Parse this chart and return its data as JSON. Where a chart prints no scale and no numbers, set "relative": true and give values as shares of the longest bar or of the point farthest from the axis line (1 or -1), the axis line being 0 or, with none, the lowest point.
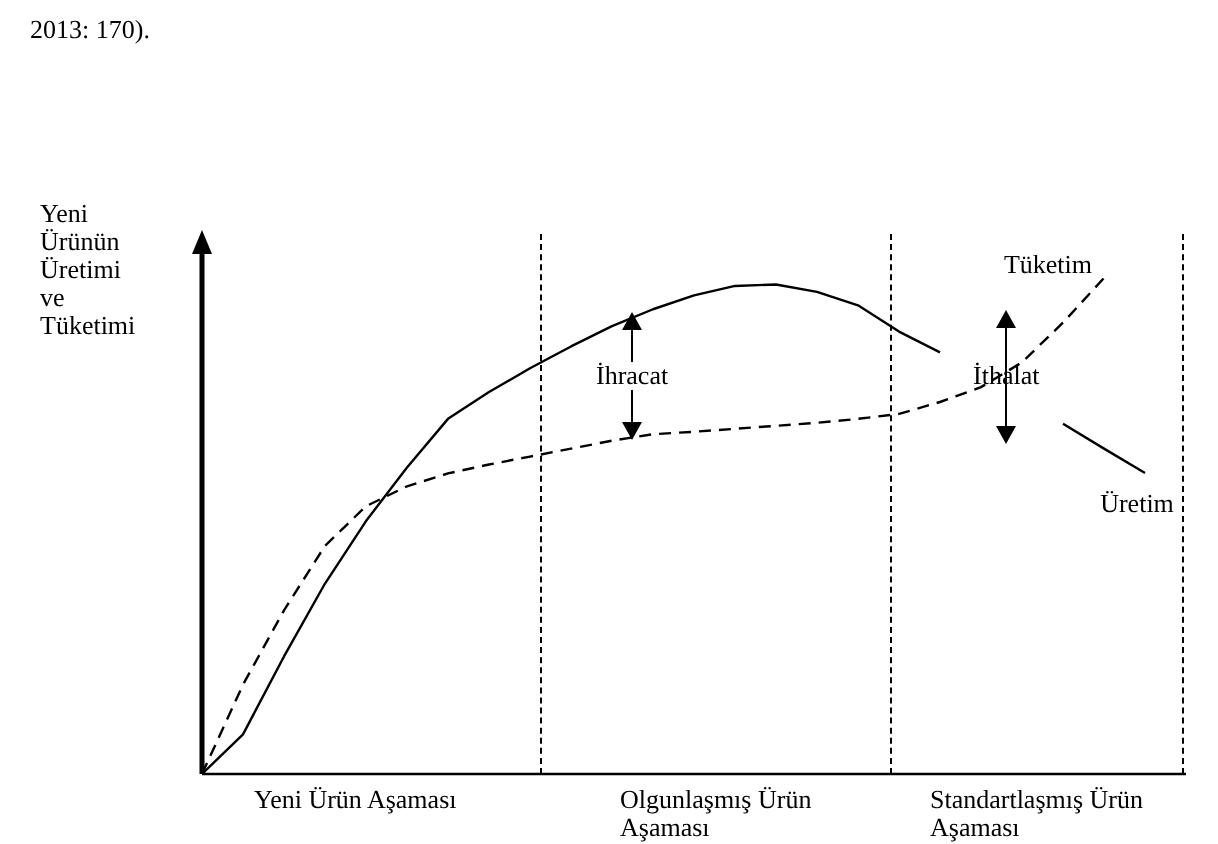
{
  "chart_data": {
    "type": "line",
    "relative": true,
    "ylabel": "Yeni Ürünün Üretimi ve Tüketimi",
    "categories": [
      null,
      null,
      null,
      null,
      null,
      null,
      null,
      null,
      null,
      null,
      null,
      null,
      null,
      null,
      null,
      null,
      null,
      null,
      null,
      null,
      null,
      null,
      null,
      null,
      null
    ],
    "series": [
      {
        "name": "Üretim",
        "color": "#000000",
        "line_style": "solid",
        "values": [
          0,
          0.08,
          0.237,
          0.384,
          0.51,
          0.618,
          0.716,
          0.77,
          0.818,
          0.862,
          0.903,
          0.937,
          0.965,
          0.984,
          0.987,
          0.972,
          0.945,
          0.892,
          0.85,
          null,
          null,
          0.706,
          0.656,
          0.607,
          null
        ]
      },
      {
        "name": "Tüketim",
        "color": "#000000",
        "line_style": "dashed",
        "values": [
          0,
          0.18,
          0.33,
          0.46,
          0.54,
          0.58,
          0.606,
          0.624,
          0.64,
          0.656,
          0.672,
          0.685,
          0.69,
          0.696,
          0.702,
          0.708,
          0.716,
          0.726,
          0.75,
          0.78,
          0.83,
          0.91,
          1,
          null,
          null
        ]
      }
    ],
    "annotations": [
      "2013: 170).",
      "İhracat",
      "İthalat",
      "Yeni Ürün Aşaması",
      "Olgunlaşmış Ürün Aşaması",
      "Standartlaşmış Ürün Aşaması"
    ]
  }
}
